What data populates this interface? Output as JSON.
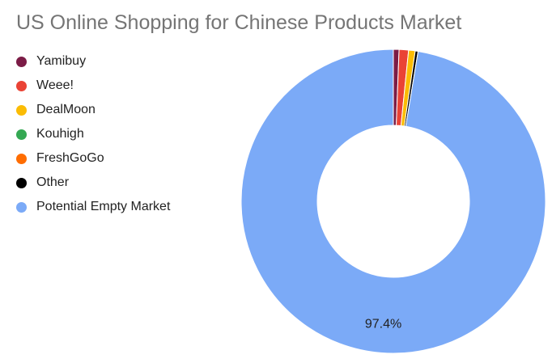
{
  "chart_data": {
    "type": "pie",
    "title": "US Online Shopping for Chinese Products Market",
    "donut": true,
    "legend_position": "left",
    "categories": [
      "Yamibuy",
      "Weee!",
      "DealMoon",
      "Kouhigh",
      "FreshGoGo",
      "Other",
      "Potential Empty Market"
    ],
    "values": [
      0.6,
      1.0,
      0.7,
      0.0,
      0.0,
      0.3,
      97.4
    ],
    "colors": [
      "#7b1c46",
      "#ea4335",
      "#fbbc04",
      "#34a853",
      "#ff6d01",
      "#000000",
      "#7baaf7"
    ],
    "data_labels": [
      "",
      "",
      "",
      "",
      "",
      "",
      "97.4%"
    ]
  }
}
